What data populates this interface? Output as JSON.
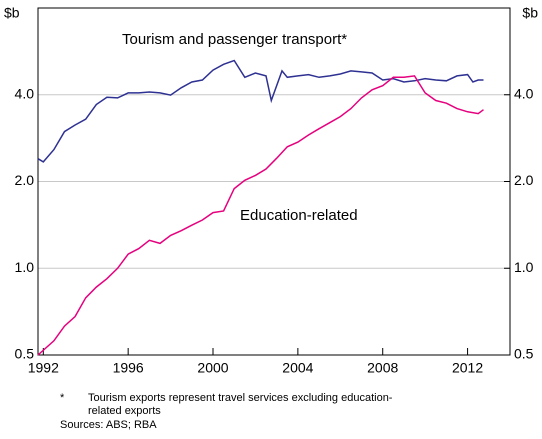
{
  "chart_data": {
    "type": "line",
    "y_unit_label": "$b",
    "y2_unit_label": "$b",
    "log_y": true,
    "grid": true,
    "xlim": [
      1991.75,
      2014
    ],
    "xticks": [
      1992,
      1996,
      2000,
      2004,
      2008,
      2012
    ],
    "ylim": [
      0.5,
      8
    ],
    "yticks": [
      0.5,
      {
        "value": 1,
        "label": "1.0"
      },
      {
        "value": 2,
        "label": "2.0"
      },
      {
        "value": 4,
        "label": "4.0"
      }
    ],
    "y2lim": [
      0.5,
      8
    ],
    "y2ticks": [
      0.5,
      {
        "value": 1,
        "label": "1.0"
      },
      {
        "value": 2,
        "label": "2.0"
      },
      {
        "value": 4,
        "label": "4.0"
      }
    ],
    "series": [
      {
        "name": "Tourism and passenger transport*",
        "color": "#2e3192",
        "x": [
          1991.75,
          1992,
          1992.5,
          1993,
          1993.5,
          1994,
          1994.5,
          1995,
          1995.5,
          1996,
          1996.5,
          1997,
          1997.5,
          1998,
          1998.5,
          1999,
          1999.5,
          2000,
          2000.5,
          2001,
          2001.5,
          2002,
          2002.5,
          2002.75,
          2003.25,
          2003.5,
          2004,
          2004.5,
          2005,
          2005.5,
          2006,
          2006.5,
          2007,
          2007.5,
          2008,
          2008.5,
          2009,
          2009.5,
          2010,
          2010.5,
          2011,
          2011.5,
          2012,
          2012.25,
          2012.5,
          2012.75
        ],
        "values": [
          2.4,
          2.34,
          2.58,
          2.98,
          3.14,
          3.29,
          3.7,
          3.92,
          3.9,
          4.06,
          4.06,
          4.09,
          4.06,
          3.99,
          4.23,
          4.43,
          4.5,
          4.87,
          5.1,
          5.26,
          4.6,
          4.76,
          4.65,
          3.82,
          4.84,
          4.6,
          4.65,
          4.7,
          4.6,
          4.65,
          4.72,
          4.84,
          4.8,
          4.76,
          4.5,
          4.55,
          4.43,
          4.47,
          4.55,
          4.5,
          4.47,
          4.65,
          4.7,
          4.43,
          4.5,
          4.5
        ]
      },
      {
        "name": "Education-related",
        "color": "#e6007e",
        "x": [
          1991.75,
          1992.5,
          1993,
          1993.5,
          1994,
          1994.5,
          1995,
          1995.5,
          1996,
          1996.5,
          1997,
          1997.5,
          1998,
          1998.5,
          1999,
          1999.5,
          2000,
          2000.5,
          2001,
          2001.5,
          2002,
          2002.5,
          2003,
          2003.5,
          2004,
          2004.5,
          2005,
          2005.5,
          2006,
          2006.5,
          2007,
          2007.5,
          2008,
          2008.5,
          2009,
          2009.5,
          2010,
          2010.5,
          2011,
          2011.5,
          2012,
          2012.5,
          2012.75
        ],
        "values": [
          0.5,
          0.56,
          0.63,
          0.68,
          0.79,
          0.86,
          0.92,
          1.0,
          1.12,
          1.17,
          1.25,
          1.22,
          1.3,
          1.35,
          1.41,
          1.47,
          1.56,
          1.58,
          1.89,
          2.02,
          2.1,
          2.21,
          2.41,
          2.64,
          2.74,
          2.9,
          3.05,
          3.2,
          3.36,
          3.58,
          3.9,
          4.16,
          4.3,
          4.6,
          4.6,
          4.65,
          4.06,
          3.82,
          3.74,
          3.58,
          3.49,
          3.44,
          3.55
        ]
      }
    ],
    "footnote_marker": "*",
    "footnote": [
      "Tourism exports represent travel services excluding education-",
      "related exports"
    ],
    "sources": "Sources: ABS; RBA"
  }
}
